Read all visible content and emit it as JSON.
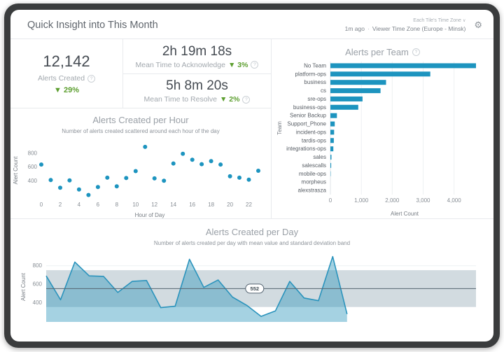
{
  "header": {
    "title": "Quick Insight into This Month",
    "timezone_selector": "Each Tile's Time Zone",
    "updated": "1m ago",
    "separator": "·",
    "timezone_label": "Viewer Time Zone (Europe - Minsk)"
  },
  "stats": {
    "alerts_created": {
      "value": "12,142",
      "label": "Alerts Created",
      "delta": "▼ 29%"
    },
    "mtta": {
      "value": "2h 19m 18s",
      "label": "Mean Time to Acknowledge",
      "delta": "▼ 3%"
    },
    "mttr": {
      "value": "5h 8m 20s",
      "label": "Mean Time to Resolve",
      "delta": "▼ 2%"
    }
  },
  "icons": {
    "gear": "⚙",
    "chevron_down": "∨",
    "info": "?"
  },
  "colors": {
    "teal": "#1d94bf",
    "teal_line": "#2a93bc",
    "teal_fill": "rgba(41,147,186,0.42)",
    "green": "#5c9e2f",
    "band_gray": "#d2dbe0",
    "mean_line": "#556471",
    "grid": "#edf0f2",
    "frame": "#3a3c3d"
  },
  "chart_data": [
    {
      "id": "alerts_per_hour",
      "type": "scatter",
      "title": "Alerts Created per Hour",
      "subtitle": "Number of alerts created scattered around each hour of the day",
      "xlabel": "Hour of Day",
      "ylabel": "Alert Count",
      "x": [
        0,
        1,
        2,
        3,
        4,
        5,
        6,
        7,
        8,
        9,
        10,
        11,
        12,
        13,
        14,
        15,
        16,
        17,
        18,
        19,
        20,
        21,
        22,
        23
      ],
      "y": [
        635,
        410,
        300,
        405,
        275,
        195,
        310,
        445,
        320,
        440,
        540,
        890,
        435,
        400,
        650,
        790,
        705,
        640,
        685,
        635,
        465,
        445,
        415,
        545
      ],
      "xticks": [
        0,
        2,
        4,
        6,
        8,
        10,
        12,
        14,
        16,
        18,
        20,
        22
      ],
      "yticks": [
        400,
        600,
        800
      ],
      "ylim": [
        140,
        960
      ],
      "grid": false
    },
    {
      "id": "alerts_per_team",
      "type": "bar",
      "title": "Alerts per Team",
      "xlabel": "Alert Count",
      "ylabel": "Team",
      "categories": [
        "No Team",
        "platform-ops",
        "business",
        "cs",
        "sre-ops",
        "business-ops",
        "Senior Backup",
        "Support_Phone",
        "incident-ops",
        "tardis-ops",
        "integrations-ops",
        "sales",
        "salescalls",
        "mobile-ops",
        "morpheus",
        "alexstrasza"
      ],
      "values": [
        4710,
        3230,
        1800,
        1620,
        1040,
        900,
        210,
        140,
        120,
        110,
        95,
        35,
        25,
        10,
        4,
        2
      ],
      "xticks": [
        0,
        1000,
        2000,
        3000,
        4000
      ],
      "xtick_labels": [
        "0",
        "1,000",
        "2,000",
        "3,000",
        "4,000"
      ],
      "xlim": [
        0,
        4800
      ],
      "grid": true
    },
    {
      "id": "alerts_per_day",
      "type": "area",
      "title": "Alerts Created per Day",
      "subtitle": "Number of alerts created per day with mean value and standard deviation band",
      "ylabel": "Alert Count",
      "values": [
        690,
        430,
        840,
        690,
        685,
        510,
        630,
        640,
        345,
        360,
        870,
        565,
        645,
        460,
        370,
        250,
        310,
        630,
        450,
        420,
        900,
        275
      ],
      "x_extent": 31,
      "mean": 552,
      "band": [
        352,
        752
      ],
      "yticks": [
        400,
        600,
        800
      ],
      "ylim": [
        190,
        950
      ],
      "mean_label_pos": 0.485,
      "grid": true
    }
  ]
}
